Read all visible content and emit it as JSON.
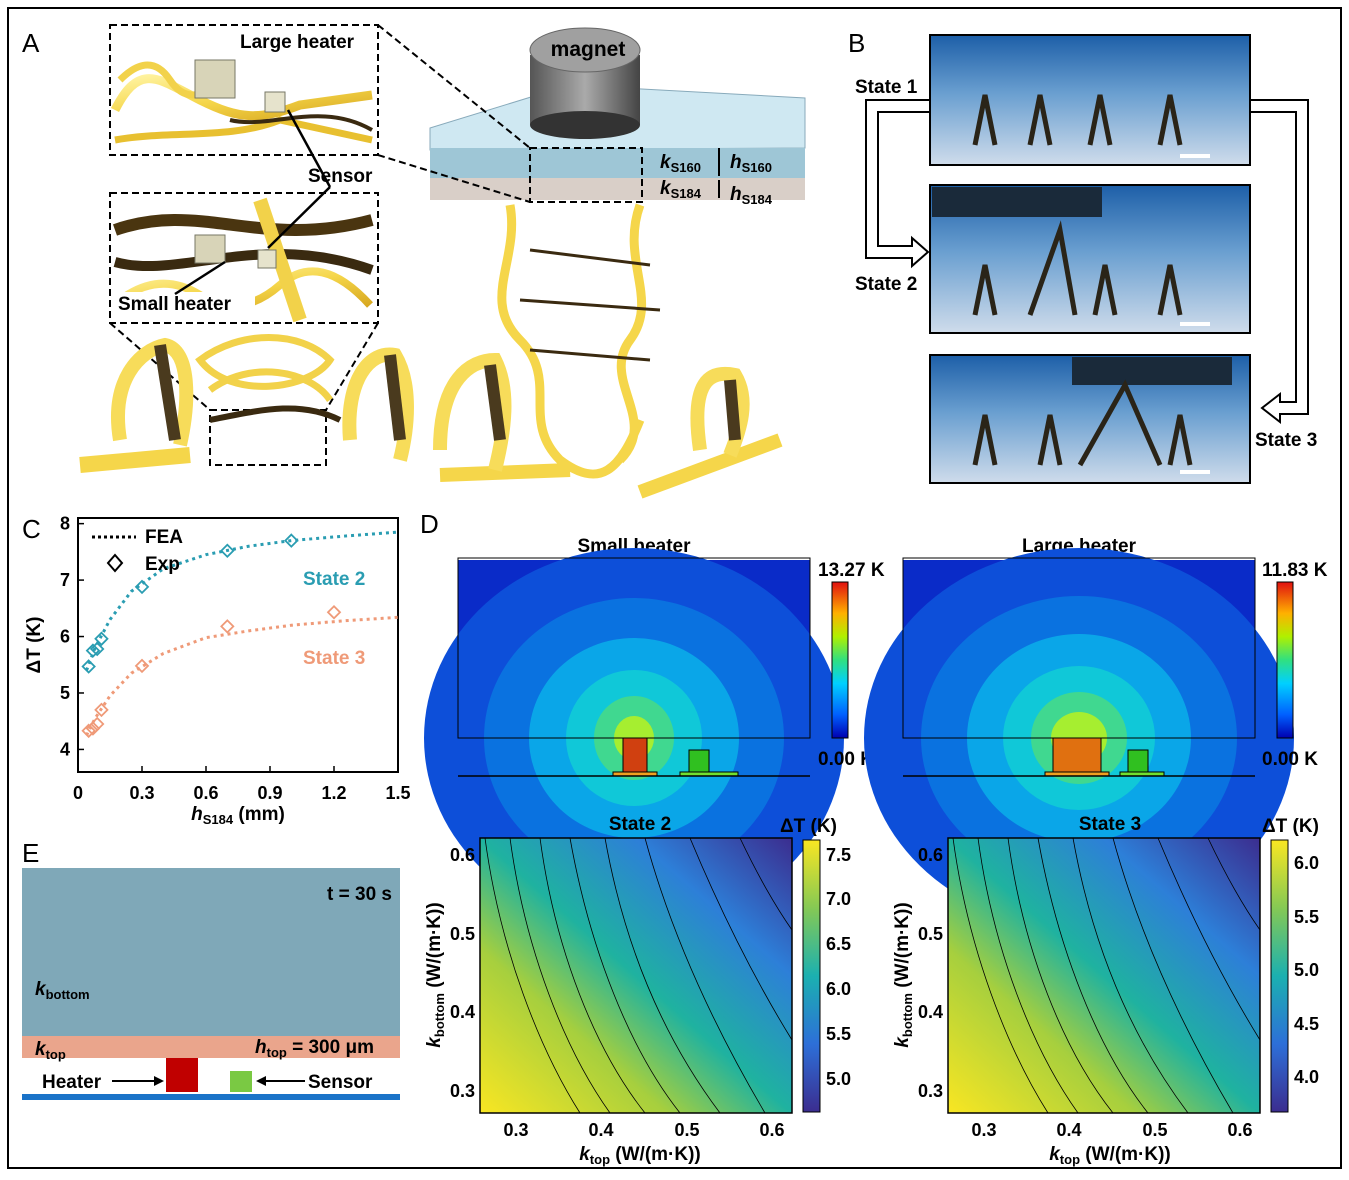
{
  "panels": {
    "A": "A",
    "B": "B",
    "C": "C",
    "D": "D",
    "E": "E"
  },
  "panelA": {
    "large_heater": "Large heater",
    "sensor": "Sensor",
    "small_heater": "Small heater",
    "magnet": "magnet",
    "k_s160": "k",
    "k_s160_sub": "S160",
    "h_s160": "h",
    "h_s160_sub": "S160",
    "k_s184": "k",
    "k_s184_sub": "S184",
    "h_s184": "h",
    "h_s184_sub": "S184"
  },
  "panelB": {
    "state1": "State 1",
    "state2": "State 2",
    "state3": "State 3"
  },
  "panelD": {
    "small_title": "Small heater",
    "large_title": "Large heater",
    "small_max": "13.27 K",
    "small_min": "0.00 K",
    "large_max": "11.83 K",
    "large_min": "0.00 K",
    "state2_title": "State 2",
    "state3_title": "State 3",
    "cbar_label": "ΔT (K)",
    "xlabel_main": "k",
    "xlabel_sub": "top",
    "xlabel_units": " (W/(m·K))",
    "ylabel_main": "k",
    "ylabel_sub": "bottom",
    "ylabel_units": " (W/(m·K))",
    "xticks": [
      "0.3",
      "0.4",
      "0.5",
      "0.6"
    ],
    "yticks": [
      "0.3",
      "0.4",
      "0.5",
      "0.6"
    ],
    "cbar2_ticks": [
      "7.5",
      "7.0",
      "6.5",
      "6.0",
      "5.5",
      "5.0"
    ],
    "cbar3_ticks": [
      "6.0",
      "5.5",
      "5.0",
      "4.5",
      "4.0"
    ]
  },
  "panelE": {
    "time": "t = 30 s",
    "k_bottom": "k",
    "k_bottom_sub": "bottom",
    "k_top": "k",
    "k_top_sub": "top",
    "h_top": "h",
    "h_top_sub": "top",
    "h_top_val": " = 300 μm",
    "heater": "Heater",
    "sensor": "Sensor"
  },
  "colors": {
    "state2": "#2a9db2",
    "state3": "#ef9a78",
    "heater": "#c00000",
    "sensor": "#7ac943",
    "bottom_layer": "#7fa8b8",
    "top_layer": "#eaa58c"
  },
  "chart_data": {
    "type": "scatter",
    "xlabel": "h",
    "xlabel_sub": "S184",
    "xlabel_units": " (mm)",
    "ylabel": "ΔT (K)",
    "xlim": [
      0,
      1.5
    ],
    "ylim": [
      3.6,
      8.1
    ],
    "xticks": [
      "0",
      "0.3",
      "0.6",
      "0.9",
      "1.2",
      "1.5"
    ],
    "yticks": [
      "4",
      "5",
      "6",
      "7",
      "8"
    ],
    "legend": [
      {
        "label": "FEA",
        "style": "dotted-line"
      },
      {
        "label": "Exp",
        "style": "diamond"
      }
    ],
    "series": [
      {
        "name": "State 2",
        "color": "#2a9db2",
        "exp_x": [
          0.05,
          0.07,
          0.09,
          0.11,
          0.3,
          0.7,
          1.0
        ],
        "exp_y": [
          5.47,
          5.75,
          5.78,
          5.96,
          6.88,
          7.52,
          7.7
        ],
        "fea_x": [
          0.04,
          0.08,
          0.15,
          0.25,
          0.4,
          0.6,
          0.8,
          1.0,
          1.25,
          1.5
        ],
        "fea_y": [
          5.4,
          5.8,
          6.3,
          6.8,
          7.2,
          7.45,
          7.6,
          7.7,
          7.78,
          7.85
        ]
      },
      {
        "name": "State 3",
        "color": "#ef9a78",
        "exp_x": [
          0.05,
          0.07,
          0.09,
          0.11,
          0.3,
          0.7,
          1.2
        ],
        "exp_y": [
          4.33,
          4.37,
          4.45,
          4.7,
          5.48,
          6.18,
          6.43
        ],
        "fea_x": [
          0.04,
          0.08,
          0.15,
          0.25,
          0.4,
          0.6,
          0.8,
          1.0,
          1.25,
          1.5
        ],
        "fea_y": [
          4.25,
          4.55,
          4.95,
          5.35,
          5.7,
          5.98,
          6.1,
          6.2,
          6.28,
          6.34
        ]
      }
    ]
  }
}
